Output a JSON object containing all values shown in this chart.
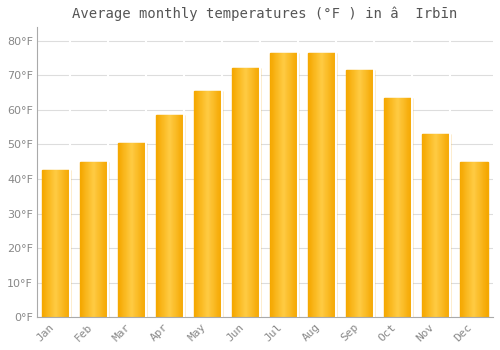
{
  "title": "Average monthly temperatures (°F ) in â  Irbīn",
  "months": [
    "Jan",
    "Feb",
    "Mar",
    "Apr",
    "May",
    "Jun",
    "Jul",
    "Aug",
    "Sep",
    "Oct",
    "Nov",
    "Dec"
  ],
  "values": [
    42.5,
    45.0,
    50.5,
    58.5,
    65.5,
    72.0,
    76.5,
    76.5,
    71.5,
    63.5,
    53.0,
    45.0
  ],
  "bar_color_center": "#FFCC44",
  "bar_color_edge": "#F5A800",
  "background_color": "#FFFFFF",
  "grid_color": "#DDDDDD",
  "text_color": "#888888",
  "axis_color": "#AAAAAA",
  "ylim": [
    0,
    84
  ],
  "yticks": [
    0,
    10,
    20,
    30,
    40,
    50,
    60,
    70,
    80
  ],
  "title_fontsize": 10,
  "tick_fontsize": 8,
  "figsize": [
    5.0,
    3.5
  ],
  "dpi": 100
}
